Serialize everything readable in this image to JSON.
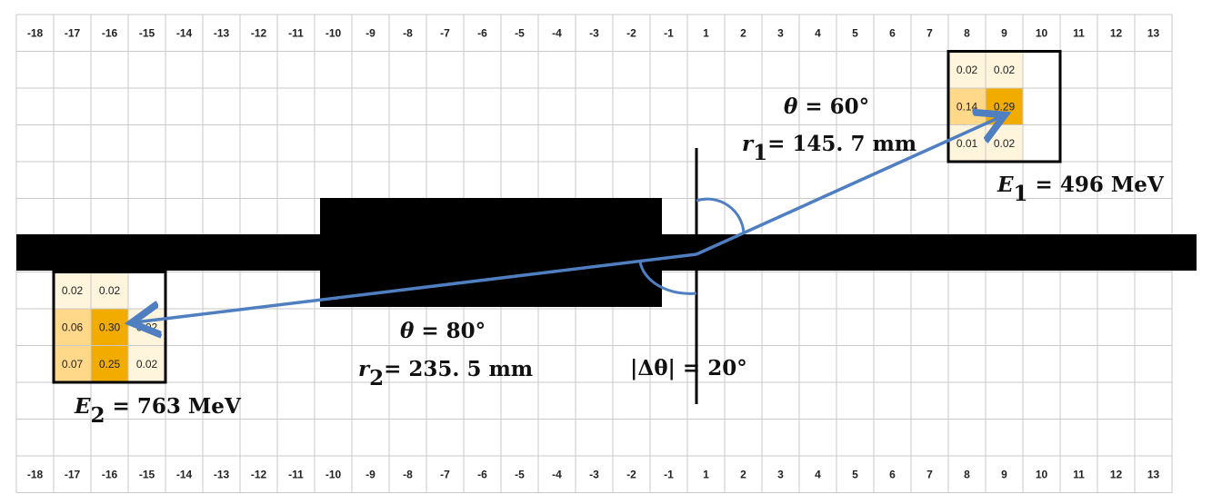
{
  "axis": {
    "columns": [
      "-18",
      "-17",
      "-16",
      "-15",
      "-14",
      "-13",
      "-12",
      "-11",
      "-10",
      "-9",
      "-8",
      "-7",
      "-6",
      "-5",
      "-4",
      "-3",
      "-2",
      "-1",
      "1",
      "2",
      "3",
      "4",
      "5",
      "6",
      "7",
      "8",
      "9",
      "10",
      "11",
      "12",
      "13"
    ]
  },
  "clusters": [
    {
      "name": "cluster-1",
      "col_start": 25,
      "row_start": 1,
      "values": [
        [
          "0.02",
          "0.02",
          ""
        ],
        [
          "0.14",
          "0.29",
          ""
        ],
        [
          "0.01",
          "0.02",
          ""
        ]
      ],
      "weights": [
        [
          0.02,
          0.02,
          0
        ],
        [
          0.14,
          0.29,
          0
        ],
        [
          0.01,
          0.02,
          0
        ]
      ]
    },
    {
      "name": "cluster-2",
      "col_start": 1,
      "row_start": 7,
      "values": [
        [
          "0.02",
          "0.02",
          ""
        ],
        [
          "0.06",
          "0.30",
          "0.02"
        ],
        [
          "0.07",
          "0.25",
          "0.02"
        ]
      ],
      "weights": [
        [
          0.02,
          0.02,
          0
        ],
        [
          0.06,
          0.3,
          0.02
        ],
        [
          0.07,
          0.25,
          0.02
        ]
      ]
    }
  ],
  "annotations": {
    "theta1": {
      "symbol": "θ",
      "text": " = 60°"
    },
    "r1": {
      "symbol": "r",
      "sub": "1",
      "text": "= 145. 7 mm"
    },
    "E1": {
      "symbol": "E",
      "sub": "1",
      "text": " = 496 MeV"
    },
    "theta2": {
      "symbol": "θ",
      "text": " = 80°"
    },
    "r2": {
      "symbol": "r",
      "sub": "2",
      "text": "= 235. 5 mm"
    },
    "E2": {
      "symbol": "E",
      "sub": "2",
      "text": " = 763 MeV"
    },
    "dtheta": {
      "text": "|Δθ| = 20°"
    }
  },
  "colors": {
    "grid": "#c9c9c9",
    "track": "#4f7fc0",
    "beam": "#000000",
    "high": "#f2ac00",
    "mid": "#ffd88a",
    "low": "#fff4dc"
  }
}
